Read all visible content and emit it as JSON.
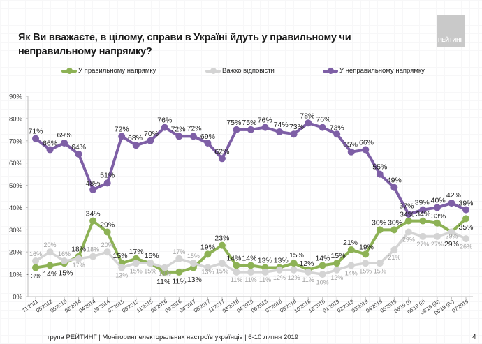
{
  "header": {
    "title": "Як Ви вважаєте, в цілому, справи в Україні йдуть у правильному чи неправильному напрямку?",
    "logo_text": "РЕЙТИНГ"
  },
  "footer": {
    "text": "група РЕЙТИНГ |  Моніторинг електоральних настроїв українців  |  6-10 липня 2019",
    "page_number": "4"
  },
  "chart_data": {
    "type": "line",
    "title": "Як Ви вважаєте, в цілому, справи в Україні йдуть у правильному чи неправильному напрямку?",
    "xlabel": "",
    "ylabel": "",
    "ylim": [
      0,
      90
    ],
    "yticks": [
      "0%",
      "10%",
      "20%",
      "30%",
      "40%",
      "50%",
      "60%",
      "70%",
      "80%",
      "90%"
    ],
    "grid": false,
    "legend_position": "top",
    "categories": [
      "11'2011",
      "05'2012",
      "05'2013",
      "02'2014",
      "04'2014",
      "09'2014",
      "07'2015",
      "09'2015",
      "11'2015",
      "02'2016",
      "09'2016",
      "04'2017",
      "08'2017",
      "11'2017",
      "03'2018",
      "04'2018",
      "06'2018",
      "07'2018",
      "09'2018",
      "10'2018",
      "12'2018",
      "01'2019",
      "02'2019",
      "03'2019",
      "04'2019",
      "05'2019",
      "06'19 (I)",
      "06'19 (II)",
      "06'19 (III)",
      "06'19 (IV)",
      "07'2019"
    ],
    "series": [
      {
        "name": "У правильному напрямку",
        "color": "#8db255",
        "values": [
          13,
          14,
          15,
          18,
          34,
          29,
          15,
          17,
          15,
          11,
          11,
          13,
          19,
          23,
          14,
          14,
          13,
          13,
          15,
          12,
          14,
          15,
          21,
          19,
          30,
          30,
          34,
          34,
          33,
          29,
          35
        ]
      },
      {
        "name": "Важко відповісти",
        "color": "#d4d4d4",
        "values": [
          16,
          20,
          16,
          17,
          18,
          20,
          13,
          15,
          15,
          13,
          17,
          15,
          13,
          15,
          11,
          11,
          11,
          12,
          12,
          11,
          10,
          12,
          14,
          15,
          15,
          21,
          29,
          27,
          27,
          29,
          26
        ]
      },
      {
        "name": "У неправильному напрямку",
        "color": "#7e5fa6",
        "values": [
          71,
          66,
          69,
          64,
          48,
          51,
          72,
          68,
          70,
          76,
          72,
          72,
          69,
          62,
          75,
          75,
          76,
          74,
          73,
          78,
          76,
          73,
          65,
          66,
          55,
          49,
          37,
          39,
          40,
          42,
          39
        ]
      }
    ]
  }
}
